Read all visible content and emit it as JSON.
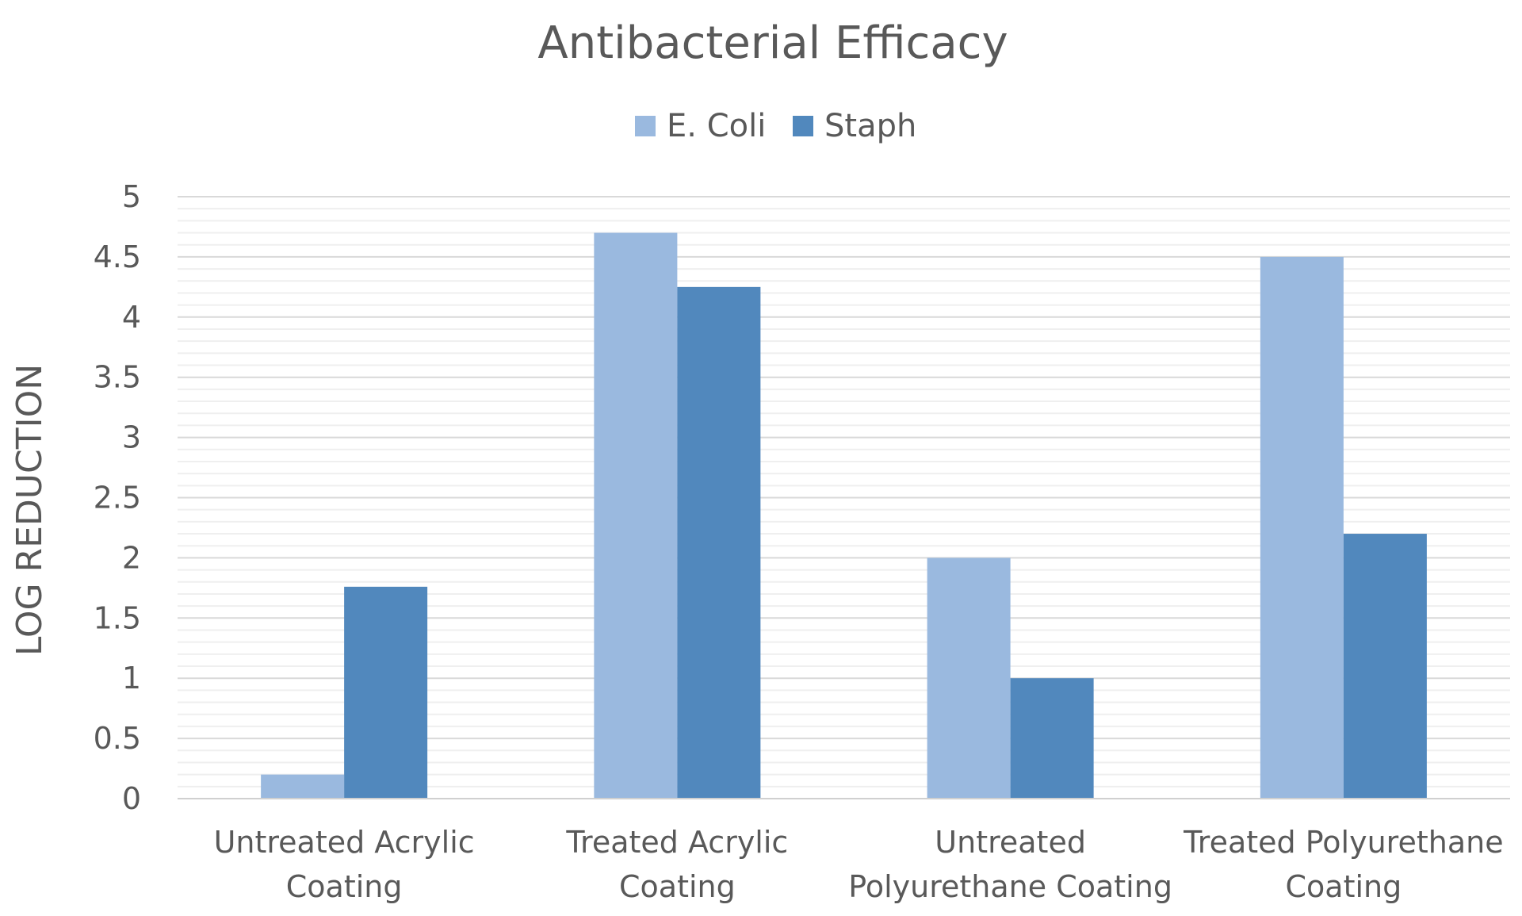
{
  "chart_data": {
    "type": "bar",
    "title": "Antibacterial Efficacy",
    "ylabel": "LOG REDUCTION",
    "xlabel": "",
    "ylim": [
      0,
      5
    ],
    "y_major_step": 0.5,
    "y_minor_step": 0.1,
    "y_ticks": [
      "0",
      "0.5",
      "1",
      "1.5",
      "2",
      "2.5",
      "3",
      "3.5",
      "4",
      "4.5",
      "5"
    ],
    "grid": true,
    "legend_position": "top",
    "categories": [
      [
        "Untreated Acrylic",
        "Coating"
      ],
      [
        "Treated Acrylic",
        "Coating"
      ],
      [
        "Untreated",
        "Polyurethane Coating"
      ],
      [
        "Treated Polyurethane",
        "Coating"
      ]
    ],
    "series": [
      {
        "name": "E. Coli",
        "color": "#9ab9df",
        "values": [
          0.2,
          4.7,
          2.0,
          4.5
        ]
      },
      {
        "name": "Staph",
        "color": "#5188bd",
        "values": [
          1.76,
          4.25,
          1.0,
          2.2
        ]
      }
    ]
  }
}
